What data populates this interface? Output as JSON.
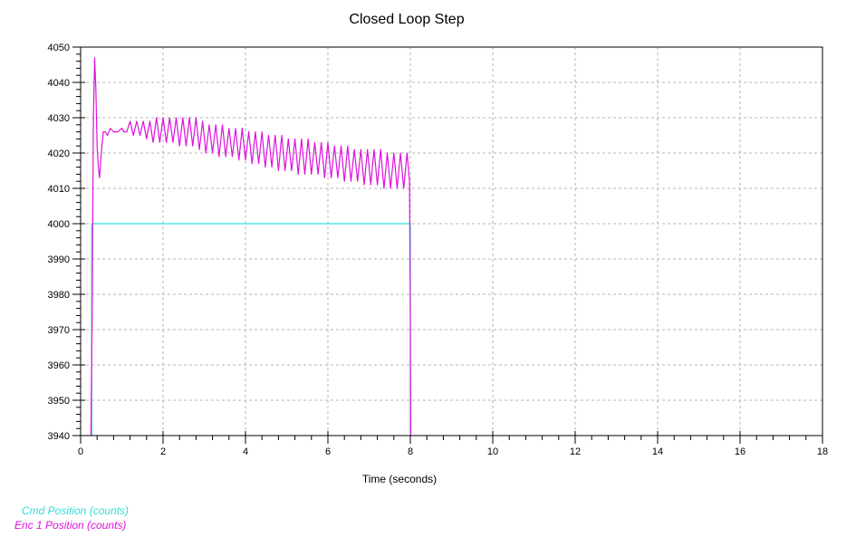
{
  "chart_data": {
    "type": "line",
    "title": "Closed Loop Step",
    "xlabel": "Time (seconds)",
    "ylabel": "",
    "xlim": [
      0,
      18
    ],
    "ylim": [
      3940,
      4050
    ],
    "xticks": [
      0,
      2,
      4,
      6,
      8,
      10,
      12,
      14,
      16,
      18
    ],
    "yticks": [
      3940,
      3950,
      3960,
      3970,
      3980,
      3990,
      4000,
      4010,
      4020,
      4030,
      4040,
      4050
    ],
    "grid": true,
    "legend_position": "bottom-left",
    "series": [
      {
        "name": "Cmd Position (counts)",
        "color": "#33dddd",
        "x": [
          0.27,
          0.27,
          8.0,
          8.0
        ],
        "y": [
          3940,
          4000,
          4000,
          3940
        ]
      },
      {
        "name": "Enc 1 Position (counts)",
        "color": "#dd11dd",
        "x": [
          0.25,
          0.28,
          0.31,
          0.34,
          0.37,
          0.4,
          0.43,
          0.46,
          0.5,
          0.55,
          0.6,
          0.65,
          0.72,
          0.8,
          0.9,
          1.0,
          1.05,
          1.12,
          1.2,
          1.28,
          1.36,
          1.44,
          1.52,
          1.6,
          1.68,
          1.76,
          1.84,
          1.92,
          2.0,
          2.08,
          2.16,
          2.24,
          2.32,
          2.4,
          2.48,
          2.56,
          2.64,
          2.72,
          2.8,
          2.88,
          2.96,
          3.04,
          3.12,
          3.2,
          3.28,
          3.36,
          3.44,
          3.52,
          3.6,
          3.68,
          3.76,
          3.84,
          3.92,
          4.0,
          4.08,
          4.16,
          4.24,
          4.32,
          4.4,
          4.48,
          4.56,
          4.64,
          4.72,
          4.8,
          4.88,
          4.96,
          5.04,
          5.12,
          5.2,
          5.28,
          5.36,
          5.44,
          5.52,
          5.6,
          5.68,
          5.76,
          5.84,
          5.92,
          6.0,
          6.08,
          6.16,
          6.24,
          6.32,
          6.4,
          6.48,
          6.56,
          6.64,
          6.72,
          6.8,
          6.88,
          6.96,
          7.04,
          7.12,
          7.2,
          7.28,
          7.36,
          7.44,
          7.52,
          7.6,
          7.68,
          7.76,
          7.84,
          7.92,
          7.98,
          8.0,
          8.01
        ],
        "y": [
          3940,
          3975,
          4030,
          4047,
          4038,
          4022,
          4016,
          4013,
          4020,
          4026,
          4026,
          4025,
          4027,
          4026,
          4026,
          4027,
          4026,
          4026,
          4029,
          4025,
          4029,
          4025,
          4029,
          4024,
          4029,
          4023,
          4030,
          4023,
          4030,
          4023,
          4030,
          4023,
          4030,
          4022,
          4030,
          4022,
          4030,
          4022,
          4030,
          4021,
          4029,
          4020,
          4028,
          4020,
          4028,
          4019,
          4028,
          4019,
          4027,
          4019,
          4027,
          4018,
          4027,
          4018,
          4026,
          4017,
          4026,
          4017,
          4026,
          4016,
          4025,
          4016,
          4025,
          4015,
          4025,
          4015,
          4024,
          4015,
          4024,
          4014,
          4024,
          4014,
          4024,
          4014,
          4023,
          4014,
          4023,
          4013,
          4023,
          4013,
          4022,
          4013,
          4022,
          4012,
          4022,
          4012,
          4021,
          4012,
          4021,
          4011,
          4021,
          4011,
          4021,
          4011,
          4021,
          4010,
          4020,
          4010,
          4020,
          4010,
          4020,
          4010,
          4020,
          4012,
          3975,
          3940
        ]
      }
    ]
  }
}
